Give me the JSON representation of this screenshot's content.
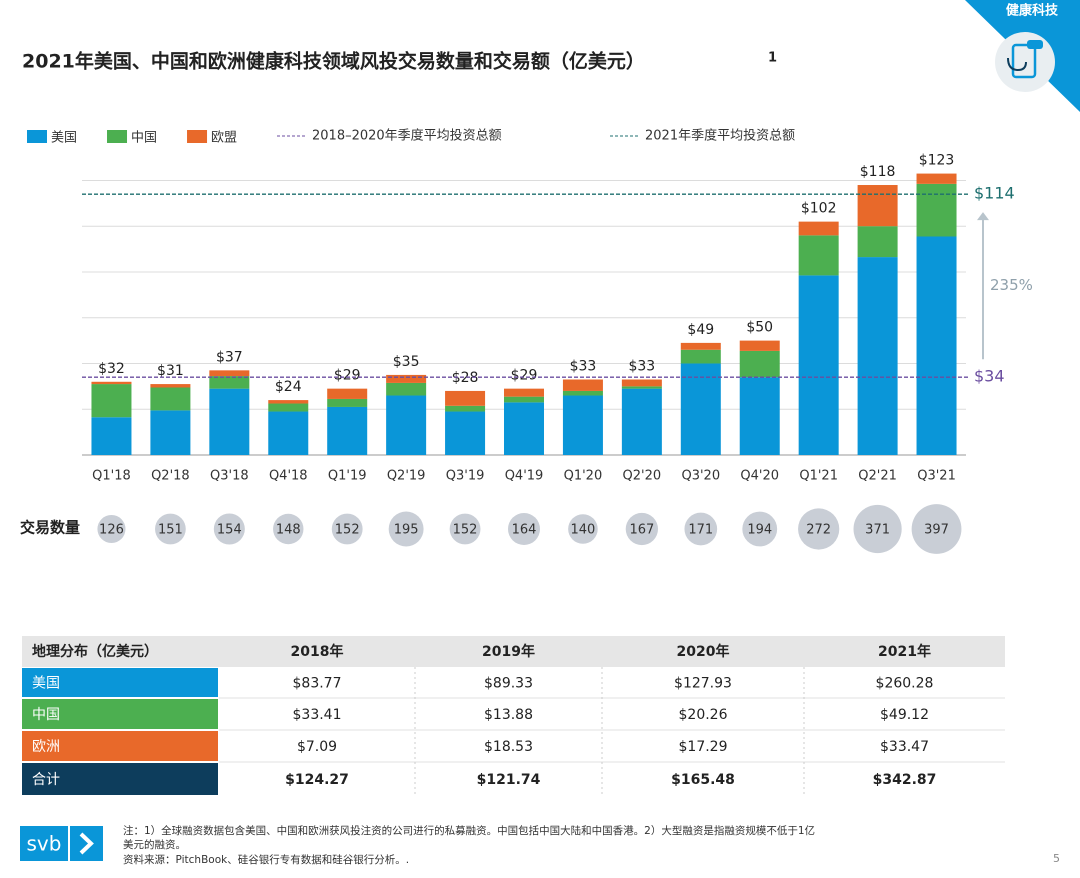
{
  "header": {
    "tag": "健康科技"
  },
  "chart_data": {
    "type": "stacked_bar",
    "title": "2021年美国、中国和欧洲健康科技领域风投交易数量和交易额（亿美元）",
    "title_note": "1",
    "categories": [
      "Q1'18",
      "Q2'18",
      "Q3'18",
      "Q4'18",
      "Q1'19",
      "Q2'19",
      "Q3'19",
      "Q4'19",
      "Q1'20",
      "Q2'20",
      "Q3'20",
      "Q4'20",
      "Q1'21",
      "Q2'21",
      "Q3'21"
    ],
    "series": [
      {
        "name": "美国",
        "color": "#0a96d8",
        "values": [
          16.5,
          19.5,
          29,
          19,
          21,
          26,
          19,
          23,
          26,
          29,
          40,
          34,
          78.5,
          86.5,
          95.5
        ]
      },
      {
        "name": "中国",
        "color": "#4caf50",
        "values": [
          14.5,
          10,
          5.5,
          3.5,
          3.5,
          5.5,
          2.5,
          2.5,
          2,
          1,
          6,
          11.5,
          17.5,
          13.5,
          23
        ]
      },
      {
        "name": "欧盟",
        "color": "#e8692a",
        "values": [
          1,
          1.5,
          2.5,
          1.5,
          4.5,
          3.5,
          6.5,
          3.5,
          5,
          3,
          3,
          4.5,
          6,
          18,
          4.5
        ]
      }
    ],
    "totals": [
      32,
      31,
      37,
      24,
      29,
      35,
      28,
      29,
      33,
      33,
      49,
      50,
      102,
      118,
      123
    ],
    "total_labels": [
      "$32",
      "$31",
      "$37",
      "$24",
      "$29",
      "$35",
      "$28",
      "$29",
      "$33",
      "$33",
      "$49",
      "$50",
      "$102",
      "$118",
      "$123"
    ],
    "reference_lines": [
      {
        "name": "2018–2020年季度平均投资总额",
        "value": 34,
        "label": "$34",
        "color": "#6b4ea0"
      },
      {
        "name": "2021年季度平均投资总额",
        "value": 114,
        "label": "$114",
        "color": "#1e6f6f"
      }
    ],
    "growth_annotation": "235%",
    "ylim": [
      0,
      125
    ],
    "yticks": [
      0,
      20,
      40,
      60,
      80,
      100,
      120
    ],
    "grid": true,
    "deal_counts": {
      "label": "交易数量",
      "values": [
        126,
        151,
        154,
        148,
        152,
        195,
        152,
        164,
        140,
        167,
        171,
        194,
        272,
        371,
        397
      ]
    }
  },
  "table": {
    "header": [
      "地理分布（亿美元）",
      "2018年",
      "2019年",
      "2020年",
      "2021年"
    ],
    "rows": [
      [
        "美国",
        "$83.77",
        "$89.33",
        "$127.93",
        "$260.28"
      ],
      [
        "中国",
        "$33.41",
        "$13.88",
        "$20.26",
        "$49.12"
      ],
      [
        "欧洲",
        "$7.09",
        "$18.53",
        "$17.29",
        "$33.47"
      ],
      [
        "合计",
        "$124.27",
        "$121.74",
        "$165.48",
        "$342.87"
      ]
    ],
    "row_colors": [
      "#0a96d8",
      "#4caf50",
      "#e8692a",
      "#0d3d5c"
    ]
  },
  "footer": {
    "logo": "svb",
    "notes": [
      "注：1）全球融资数据包含美国、中国和欧洲获风投注资的公司进行的私募融资。中国包括中国大陆和中国香港。2）大型融资是指融资规模不低于1亿",
      "美元的融资。",
      "资料来源：PitchBook、硅谷银行专有数据和硅谷银行分析。."
    ],
    "page": "5"
  }
}
